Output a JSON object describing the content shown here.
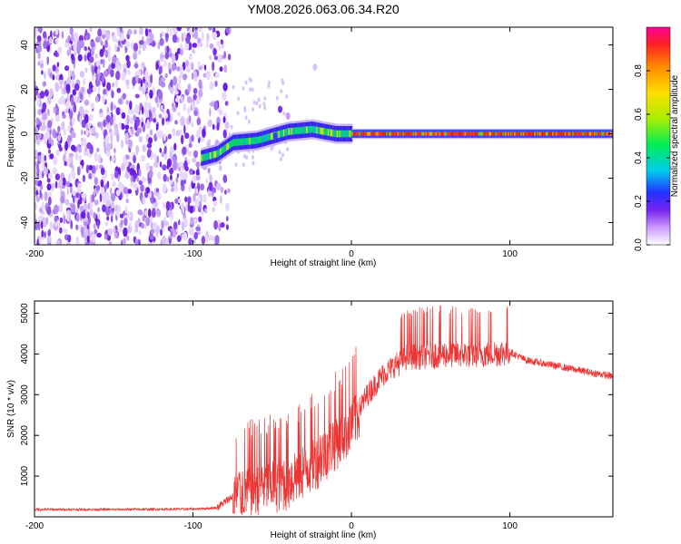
{
  "title": "YM08.2026.063.06.34.R20",
  "chart_data": [
    {
      "type": "heatmap",
      "title": "YM08.2026.063.06.34.R20",
      "xlabel": "Height of straight line (km)",
      "ylabel": "Frequency (Hz)",
      "xlim": [
        -200,
        165
      ],
      "ylim": [
        -50,
        48
      ],
      "x_ticks": [
        -200,
        -100,
        0,
        100
      ],
      "y_ticks": [
        -40,
        -20,
        0,
        20,
        40
      ],
      "colorbar": {
        "label": "Normalized spectral amplitude",
        "range": [
          0,
          1
        ],
        "ticks": [
          "0.0",
          "0.2",
          "0.4",
          "0.6",
          "0.8"
        ]
      },
      "features": {
        "noise_region_x": [
          -200,
          -83
        ],
        "signal_x": [
          -95,
          165
        ],
        "signal_frequency_path": [
          {
            "x": -95,
            "y": -11
          },
          {
            "x": -85,
            "y": -9
          },
          {
            "x": -75,
            "y": -4
          },
          {
            "x": -60,
            "y": -3
          },
          {
            "x": -50,
            "y": -1
          },
          {
            "x": -40,
            "y": 1
          },
          {
            "x": -25,
            "y": 2
          },
          {
            "x": -10,
            "y": 0
          },
          {
            "x": 0,
            "y": 0
          },
          {
            "x": 165,
            "y": 0
          }
        ]
      }
    },
    {
      "type": "line",
      "xlabel": "Height of straight line (km)",
      "ylabel": "SNR (10 * v/v)",
      "xlim": [
        -200,
        165
      ],
      "ylim": [
        0,
        5300
      ],
      "x_ticks": [
        -200,
        -100,
        0,
        100
      ],
      "y_ticks": [
        1000,
        2000,
        3000,
        4000,
        5000
      ],
      "series": [
        {
          "name": "SNR",
          "color": "#ee3333",
          "envelope": [
            {
              "x": -200,
              "y": 180
            },
            {
              "x": -150,
              "y": 180
            },
            {
              "x": -100,
              "y": 190
            },
            {
              "x": -85,
              "y": 220
            },
            {
              "x": -75,
              "y": 500
            },
            {
              "x": -60,
              "y": 800
            },
            {
              "x": -40,
              "y": 900
            },
            {
              "x": -20,
              "y": 1500
            },
            {
              "x": 0,
              "y": 2300
            },
            {
              "x": 10,
              "y": 3000
            },
            {
              "x": 20,
              "y": 3500
            },
            {
              "x": 35,
              "y": 3950
            },
            {
              "x": 60,
              "y": 4000
            },
            {
              "x": 80,
              "y": 4000
            },
            {
              "x": 100,
              "y": 4050
            },
            {
              "x": 110,
              "y": 3850
            },
            {
              "x": 130,
              "y": 3700
            },
            {
              "x": 150,
              "y": 3550
            },
            {
              "x": 165,
              "y": 3450
            }
          ]
        }
      ]
    }
  ]
}
